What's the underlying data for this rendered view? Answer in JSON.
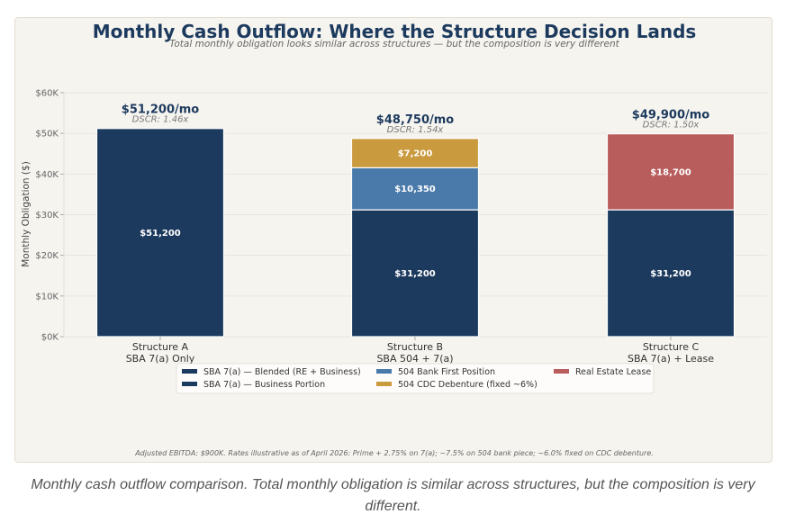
{
  "chart_data": {
    "type": "bar",
    "stacked": true,
    "title": "Monthly Cash Outflow: Where the Structure Decision Lands",
    "subtitle": "Total monthly obligation looks similar across structures — but the composition is very different",
    "xlabel": "",
    "ylabel": "Monthly Obligation ($)",
    "ylim": [
      0,
      60000
    ],
    "yticks": [
      0,
      10000,
      20000,
      30000,
      40000,
      50000,
      60000
    ],
    "ytick_labels": [
      "$0K",
      "$10K",
      "$20K",
      "$30K",
      "$40K",
      "$50K",
      "$60K"
    ],
    "grid": true,
    "categories": [
      {
        "line1": "Structure A",
        "line2": "SBA 7(a) Only"
      },
      {
        "line1": "Structure B",
        "line2": "SBA 504 + 7(a)"
      },
      {
        "line1": "Structure C",
        "line2": "SBA 7(a) + Lease"
      }
    ],
    "series": [
      {
        "name": "SBA 7(a) — Blended (RE + Business)",
        "color": "#1c3a5e",
        "values": [
          51200,
          0,
          0
        ],
        "labels": [
          "$51,200",
          "",
          ""
        ]
      },
      {
        "name": "SBA 7(a) — Business Portion",
        "color": "#1c3a5e",
        "values": [
          0,
          31200,
          31200
        ],
        "labels": [
          "",
          "$31,200",
          "$31,200"
        ]
      },
      {
        "name": "504 Bank First Position",
        "color": "#4a7aaa",
        "values": [
          0,
          10350,
          0
        ],
        "labels": [
          "",
          "$10,350",
          ""
        ]
      },
      {
        "name": "504 CDC Debenture (fixed ~6%)",
        "color": "#c99a3e",
        "values": [
          0,
          7200,
          0
        ],
        "labels": [
          "",
          "$7,200",
          ""
        ]
      },
      {
        "name": "Real Estate Lease",
        "color": "#b85c5c",
        "values": [
          0,
          0,
          18700
        ],
        "labels": [
          "",
          "",
          "$18,700"
        ]
      }
    ],
    "totals": [
      {
        "label": "$51,200/mo",
        "dscr": "DSCR: 1.46x",
        "value": 51200
      },
      {
        "label": "$48,750/mo",
        "dscr": "DSCR: 1.54x",
        "value": 48750
      },
      {
        "label": "$49,900/mo",
        "dscr": "DSCR: 1.50x",
        "value": 49900
      }
    ],
    "legend": {
      "placement": "bottom-center",
      "columns": [
        [
          "SBA 7(a) — Blended (RE + Business)",
          "SBA 7(a) — Business Portion"
        ],
        [
          "504 Bank First Position",
          "504 CDC Debenture (fixed ~6%)"
        ],
        [
          "Real Estate Lease"
        ]
      ]
    },
    "footnote": "Adjusted EBITDA: $900K. Rates illustrative as of April 2026: Prime + 2.75% on 7(a); ~7.5% on 504 bank piece; ~6.0% fixed on CDC debenture."
  },
  "colors": {
    "navy": "#1c3a5e",
    "steel_blue": "#4a7aaa",
    "gold": "#c99a3e",
    "brick": "#b85c5c"
  },
  "caption": "Monthly cash outflow comparison. Total monthly obligation is similar across structures, but the composition is very different."
}
